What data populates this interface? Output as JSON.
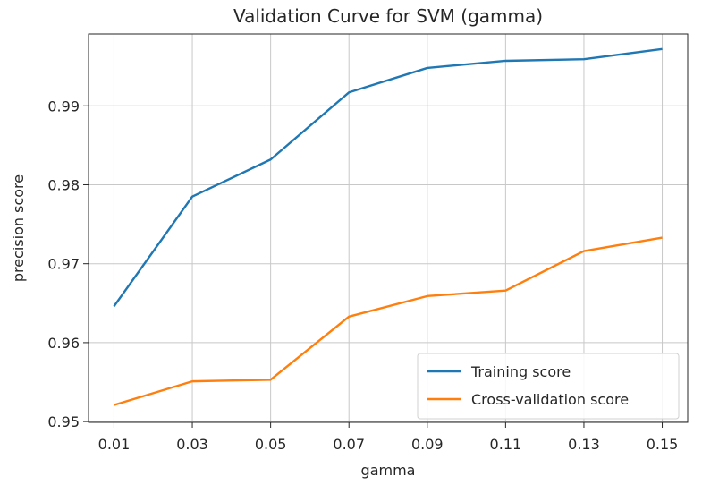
{
  "chart_data": {
    "type": "line",
    "title": "Validation Curve for SVM (gamma)",
    "xlabel": "gamma",
    "ylabel": "precision score",
    "x": [
      0.01,
      0.03,
      0.05,
      0.07,
      0.09,
      0.11,
      0.13,
      0.15
    ],
    "x_tick_labels": [
      "0.01",
      "0.03",
      "0.05",
      "0.07",
      "0.09",
      "0.11",
      "0.13",
      "0.15"
    ],
    "y_ticks": [
      0.95,
      0.96,
      0.97,
      0.98,
      0.99
    ],
    "y_tick_labels": [
      "0.95",
      "0.96",
      "0.97",
      "0.98",
      "0.99"
    ],
    "xlim": [
      0.0035,
      0.1565
    ],
    "ylim": [
      0.9499,
      0.9991
    ],
    "grid": true,
    "legend_position": "lower right",
    "series": [
      {
        "name": "Training score",
        "color": "#1f77b4",
        "values": [
          0.9646,
          0.9785,
          0.9832,
          0.9917,
          0.9948,
          0.9957,
          0.9959,
          0.9972
        ]
      },
      {
        "name": "Cross-validation score",
        "color": "#ff7f0e",
        "values": [
          0.9521,
          0.9551,
          0.9553,
          0.9633,
          0.9659,
          0.9666,
          0.9716,
          0.9733
        ]
      }
    ]
  }
}
